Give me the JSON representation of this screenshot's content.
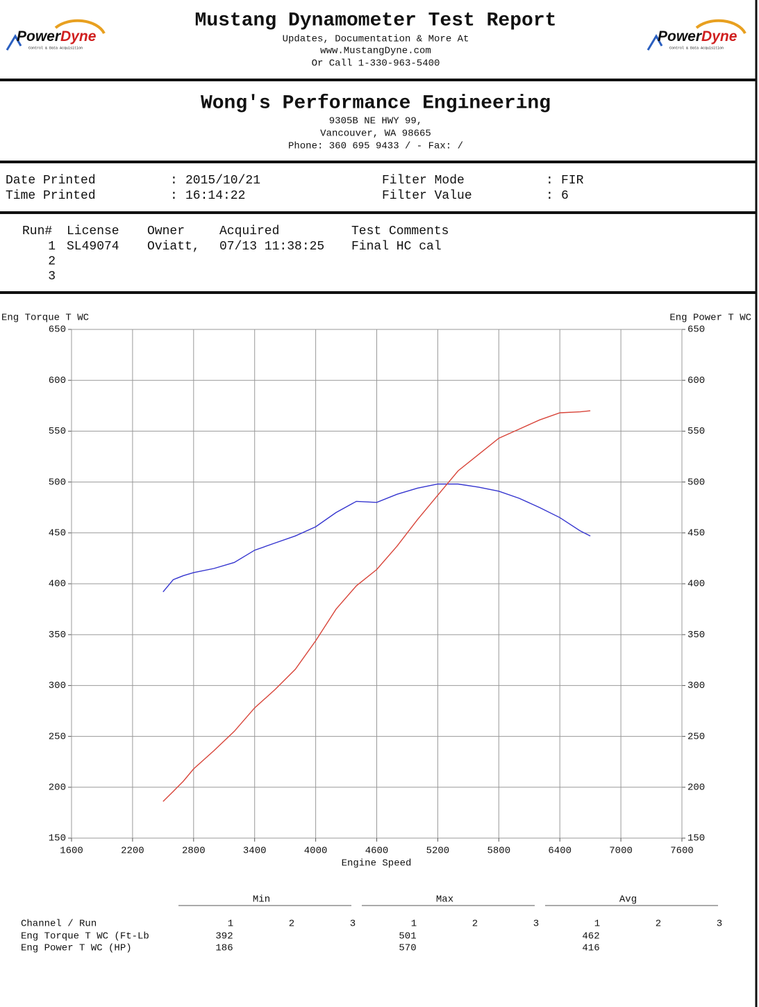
{
  "header": {
    "logo": {
      "left": "Power",
      "right": "Dyne",
      "tagline": "Control & Data Acquisition"
    },
    "title": "Mustang Dynamometer Test Report",
    "lines": [
      "Updates, Documentation & More At",
      "www.MustangDyne.com",
      "Or Call 1-330-963-5400"
    ]
  },
  "shop": {
    "name": "Wong's Performance Engineering",
    "lines": [
      "9305B NE HWY 99,",
      "Vancouver, WA  98665",
      "Phone: 360 695 9433 /  - Fax:  /"
    ]
  },
  "print_info": [
    {
      "label": "Date Printed",
      "value": "2015/10/21"
    },
    {
      "label": "Time Printed",
      "value": "16:14:22"
    },
    {
      "label": "Filter Mode",
      "value": "FIR"
    },
    {
      "label": "Filter Value",
      "value": "6"
    }
  ],
  "runs": {
    "columns": [
      "Run#",
      "License",
      "Owner",
      "Acquired",
      "Test Comments"
    ],
    "rows": [
      [
        "1",
        "SL49074",
        "Oviatt,",
        "07/13 11:38:25",
        "Final HC cal"
      ],
      [
        "2"
      ],
      [
        "3"
      ]
    ]
  },
  "chart_data": {
    "type": "line",
    "ylabel": "Eng Torque T WC",
    "y2label": "Eng Power T WC",
    "xlabel": "Engine Speed",
    "xlim": [
      1600,
      7600
    ],
    "xticks": [
      1600,
      2200,
      2800,
      3400,
      4000,
      4600,
      5200,
      5800,
      6400,
      7000,
      7600
    ],
    "ylim": [
      150,
      650
    ],
    "yticks": [
      150,
      200,
      250,
      300,
      350,
      400,
      450,
      500,
      550,
      600,
      650
    ],
    "y2lim": [
      150,
      650
    ],
    "y2ticks": [
      150,
      200,
      250,
      300,
      350,
      400,
      450,
      500,
      550,
      600,
      650
    ],
    "grid": true,
    "x": [
      2500,
      2600,
      2700,
      2800,
      3000,
      3200,
      3400,
      3600,
      3800,
      4000,
      4200,
      4400,
      4600,
      4800,
      5000,
      5200,
      5400,
      5600,
      5800,
      6000,
      6200,
      6400,
      6600,
      6700
    ],
    "series": [
      {
        "name": "Eng Torque T WC",
        "color": "#3535cf",
        "axis": "y",
        "values": [
          392,
          404,
          408,
          411,
          415,
          421,
          433,
          440,
          447,
          456,
          470,
          481,
          480,
          488,
          494,
          498,
          498,
          495,
          491,
          484,
          475,
          465,
          452,
          447
        ]
      },
      {
        "name": "Eng Power T WC",
        "color": "#d8453a",
        "axis": "y2",
        "values": [
          186,
          196,
          206,
          218,
          236,
          255,
          278,
          296,
          316,
          344,
          375,
          398,
          414,
          437,
          463,
          487,
          511,
          527,
          543,
          552,
          561,
          568,
          569,
          570
        ]
      }
    ]
  },
  "stats": {
    "groups": [
      "Min",
      "Max",
      "Avg"
    ],
    "runs": [
      "1",
      "2",
      "3"
    ],
    "channel_header": "Channel / Run",
    "rows": [
      {
        "name": "Eng Torque T WC (Ft-Lb",
        "color": "#3535cf",
        "values": [
          392,
          501,
          462
        ]
      },
      {
        "name": "Eng Power T WC (HP)",
        "color": "#d8453a",
        "values": [
          186,
          570,
          416
        ]
      }
    ]
  }
}
